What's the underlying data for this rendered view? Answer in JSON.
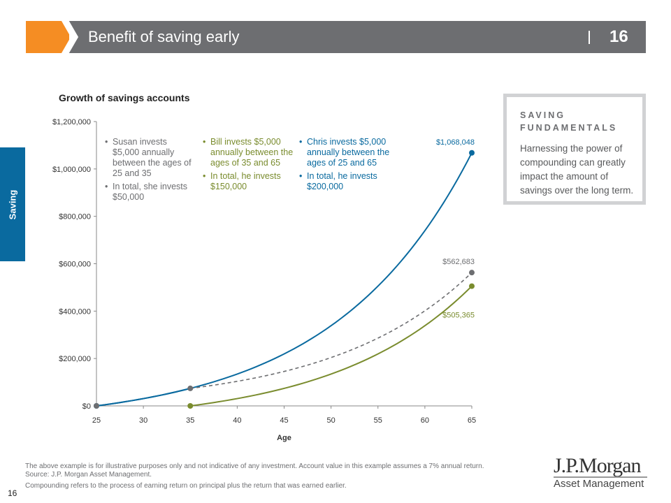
{
  "header": {
    "title": "Benefit of saving early",
    "page_number": "16"
  },
  "side_tab": "Saving",
  "colors": {
    "chris": "#0a6a9f",
    "susan": "#6d6e71",
    "bill": "#7a8c2e",
    "orange": "#f58d23",
    "header": "#6d6e71"
  },
  "chart_data": {
    "type": "line",
    "title": "Growth of savings accounts",
    "xlabel": "Age",
    "ylabel": "",
    "xlim": [
      25,
      65
    ],
    "ylim": [
      0,
      1200000
    ],
    "x_ticks": [
      "25",
      "30",
      "35",
      "40",
      "45",
      "50",
      "55",
      "60",
      "65"
    ],
    "y_ticks": [
      "$0",
      "$200,000",
      "$400,000",
      "$600,000",
      "$800,000",
      "$1,000,000",
      "$1,200,000"
    ],
    "grid": false,
    "x": [
      25,
      30,
      35,
      40,
      45,
      50,
      55,
      60,
      65
    ],
    "series": [
      {
        "key": "chris",
        "values": [
          0,
          30766,
          73918,
          134440,
          219326,
          338382,
          505365,
          739567,
          1068048
        ],
        "style": "solid",
        "end_label": "$1,068,048"
      },
      {
        "key": "susan",
        "values": [
          0,
          30766,
          73918,
          103674,
          145409,
          203944,
          286044,
          401195,
          562683
        ],
        "style": "dashed-after-35",
        "end_label": "$562,683"
      },
      {
        "key": "bill",
        "values": [
          null,
          null,
          0,
          30766,
          73918,
          134440,
          219326,
          338382,
          505365
        ],
        "style": "solid",
        "end_label": "$505,365"
      }
    ],
    "legend": [
      {
        "key": "susan",
        "items": [
          "Susan invests $5,000 annually between the ages of 25 and 35",
          "In total, she invests $50,000"
        ]
      },
      {
        "key": "bill",
        "items": [
          "Bill invests $5,000 annually between the ages of 35 and 65",
          "In total, he invests $150,000"
        ]
      },
      {
        "key": "chris",
        "items": [
          "Chris invests $5,000 annually between the ages of 25 and 65",
          "In total, he invests $200,000"
        ]
      }
    ]
  },
  "sidebar_box": {
    "heading": "SAVING FUNDAMENTALS",
    "text": "Harnessing the power of compounding can greatly impact the amount of savings over the long term."
  },
  "footer": {
    "line1": "The above example is for illustrative purposes only and not indicative of any investment. Account value in this example assumes a 7% annual return.",
    "line2": "Source: J.P. Morgan Asset Management.",
    "line3": "Compounding refers to the process of earning return on principal plus the return that was earned earlier.",
    "page": "16"
  },
  "logo": {
    "line1": "J.P.Morgan",
    "line2": "Asset Management"
  }
}
